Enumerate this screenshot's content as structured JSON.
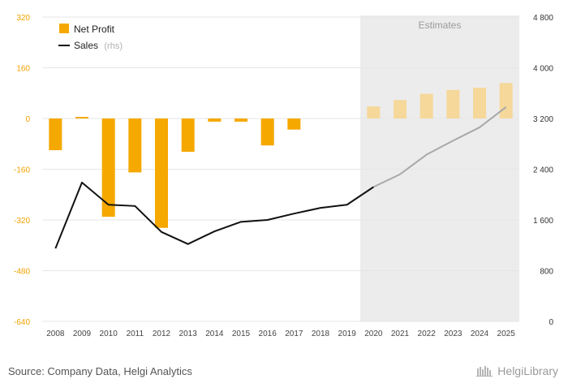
{
  "chart_data": {
    "type": "bar",
    "categories": [
      "2008",
      "2009",
      "2010",
      "2011",
      "2012",
      "2013",
      "2014",
      "2015",
      "2016",
      "2017",
      "2018",
      "2019",
      "2020",
      "2021",
      "2022",
      "2023",
      "2024",
      "2025"
    ],
    "series": [
      {
        "name": "Net Profit",
        "axis": "left",
        "type": "bar",
        "color": "#f5a800",
        "estimate_color": "#f5d89a",
        "values": [
          -100,
          5,
          -310,
          -170,
          -345,
          -105,
          -10,
          -10,
          -85,
          -35,
          0,
          0,
          38,
          58,
          78,
          90,
          97,
          112
        ]
      },
      {
        "name": "Sales",
        "name_suffix": "(rhs)",
        "axis": "right",
        "type": "line",
        "color": "#111111",
        "estimate_color": "#a8a8a8",
        "values": [
          1150,
          2190,
          1840,
          1820,
          1410,
          1220,
          1420,
          1570,
          1600,
          1700,
          1790,
          1840,
          2120,
          2320,
          2630,
          2850,
          3060,
          3380
        ]
      }
    ],
    "estimate_start_index": 12,
    "estimate_label": "Estimates",
    "ylim_left": [
      -640,
      320
    ],
    "yticks_left": [
      "320",
      "160",
      "0",
      "-160",
      "-320",
      "-480",
      "-640"
    ],
    "ylim_right": [
      0,
      4800
    ],
    "yticks_right": [
      "4 800",
      "4 000",
      "3 200",
      "2 400",
      "1 600",
      "800",
      "0"
    ],
    "grid": true,
    "legend_position": "top-left"
  },
  "footer": {
    "source": "Source: Company Data, Helgi Analytics",
    "logo_text": "HelgiLibrary"
  },
  "colors": {
    "estimate_band": "#ececec",
    "grid": "#e6e6e6",
    "left_axis_text": "#f0a300"
  }
}
